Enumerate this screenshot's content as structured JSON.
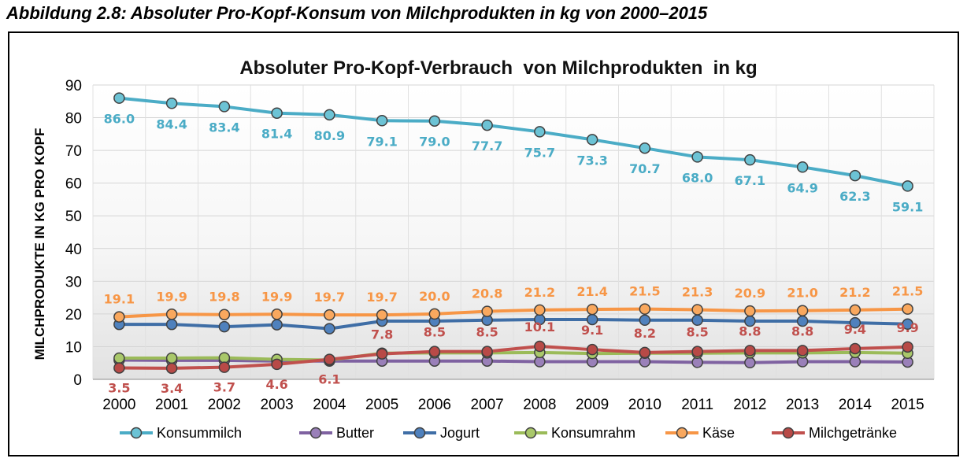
{
  "caption": "Abbildung 2.8: Absoluter Pro-Kopf-Konsum von Milchprodukten in kg von 2000–2015",
  "chart_data": {
    "type": "line",
    "title": "Absoluter Pro-Kopf-Verbrauch  von Milchprodukten  in kg",
    "ylabel": "MILCHPRODUKTE IN KG PRO KOPF",
    "xlabel": "",
    "ylim": [
      0,
      90
    ],
    "yticks": [
      0,
      10,
      20,
      30,
      40,
      50,
      60,
      70,
      80,
      90
    ],
    "grid": true,
    "legend_position": "bottom",
    "categories": [
      "2000",
      "2001",
      "2002",
      "2003",
      "2004",
      "2005",
      "2006",
      "2007",
      "2008",
      "2009",
      "2010",
      "2011",
      "2012",
      "2013",
      "2014",
      "2015"
    ],
    "series": [
      {
        "name": "Konsummilch",
        "color": "#4bacc6",
        "fill": "#6cc3d5",
        "show_labels": true,
        "values": [
          86.0,
          84.4,
          83.4,
          81.4,
          80.9,
          79.1,
          79.0,
          77.7,
          75.7,
          73.3,
          70.7,
          68.0,
          67.1,
          64.9,
          62.3,
          59.1
        ],
        "labels": [
          "86.0",
          "84.4",
          "83.4",
          "81.4",
          "80.9",
          "79.1",
          "79.0",
          "77.7",
          "75.7",
          "73.3",
          "70.7",
          "68.0",
          "67.1",
          "64.9",
          "62.3",
          "59.1"
        ]
      },
      {
        "name": "Butter",
        "color": "#7f62a1",
        "fill": "#9a80b9",
        "show_labels": false,
        "values": [
          5.9,
          5.8,
          5.8,
          5.6,
          5.6,
          5.6,
          5.6,
          5.6,
          5.4,
          5.4,
          5.4,
          5.2,
          5.1,
          5.4,
          5.4,
          5.3
        ]
      },
      {
        "name": "Jogurt",
        "color": "#3f6ea6",
        "fill": "#4f81bd",
        "show_labels": false,
        "values": [
          16.8,
          16.8,
          16.1,
          16.7,
          15.5,
          17.8,
          17.8,
          18.1,
          18.3,
          18.3,
          18.1,
          18.1,
          17.8,
          17.8,
          17.3,
          16.9
        ]
      },
      {
        "name": "Konsumrahm",
        "color": "#9bbb59",
        "fill": "#a9c86a",
        "show_labels": false,
        "values": [
          6.5,
          6.5,
          6.6,
          6.1,
          5.9,
          8.0,
          8.1,
          8.1,
          8.2,
          7.9,
          8.0,
          8.0,
          8.1,
          8.1,
          8.2,
          8.0
        ]
      },
      {
        "name": "Käse",
        "color": "#f79646",
        "fill": "#f9a85e",
        "show_labels": true,
        "values": [
          19.1,
          19.9,
          19.8,
          19.9,
          19.7,
          19.7,
          20.0,
          20.8,
          21.2,
          21.4,
          21.5,
          21.3,
          20.9,
          21.0,
          21.2,
          21.5
        ],
        "labels": [
          "19.1",
          "19.9",
          "19.8",
          "19.9",
          "19.7",
          "19.7",
          "20.0",
          "20.8",
          "21.2",
          "21.4",
          "21.5",
          "21.3",
          "20.9",
          "21.0",
          "21.2",
          "21.5"
        ]
      },
      {
        "name": "Milchgetränke",
        "color": "#c0504d",
        "fill": "#b84a47",
        "show_labels": true,
        "values": [
          3.5,
          3.4,
          3.7,
          4.6,
          6.1,
          7.8,
          8.5,
          8.5,
          10.1,
          9.1,
          8.2,
          8.5,
          8.8,
          8.8,
          9.4,
          9.9
        ],
        "labels": [
          "3.5",
          "3.4",
          "3.7",
          "4.6",
          "6.1",
          "7.8",
          "8.5",
          "8.5",
          "10.1",
          "9.1",
          "8.2",
          "8.5",
          "8.8",
          "8.8",
          "9.4",
          "9.9"
        ]
      }
    ]
  }
}
